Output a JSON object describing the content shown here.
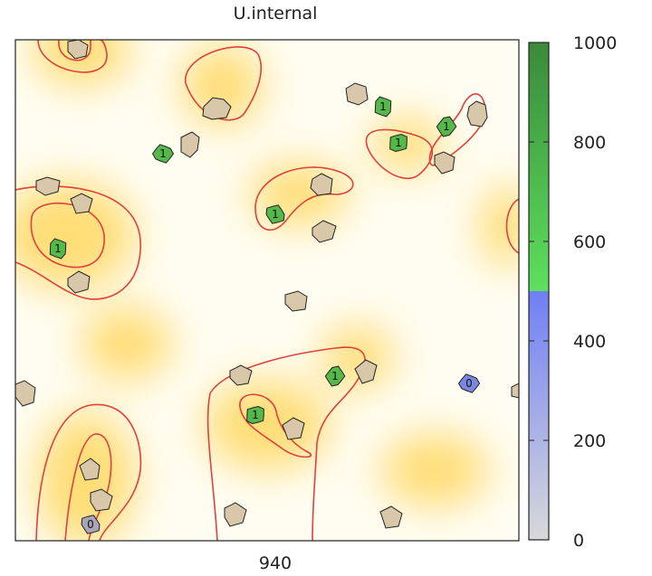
{
  "chart_data": {
    "type": "heatmap",
    "title": "U.internal",
    "xlabel": "940",
    "colorbar": {
      "min": 0,
      "max": 1000,
      "ticks": [
        0,
        200,
        400,
        600,
        800,
        1000
      ],
      "bands": [
        {
          "from": 0,
          "to": 500,
          "colors": [
            "#d9d9d9",
            "#6f7ff5"
          ]
        },
        {
          "from": 500,
          "to": 1000,
          "colors": [
            "#5ee05e",
            "#3a8a3a"
          ]
        }
      ]
    },
    "background_colors": {
      "low": "#fffdf2",
      "high": "#ffd24d",
      "contour": "#e0413c"
    },
    "regions": [
      {
        "label": "1",
        "value": 780,
        "color": "#55b84a"
      },
      {
        "label": "1",
        "value": 780,
        "color": "#55b84a"
      },
      {
        "label": "1",
        "value": 780,
        "color": "#55b84a"
      },
      {
        "label": "1",
        "value": 780,
        "color": "#55b84a"
      },
      {
        "label": "1",
        "value": 780,
        "color": "#55b84a"
      },
      {
        "label": "1",
        "value": 780,
        "color": "#55b84a"
      },
      {
        "label": "1",
        "value": 780,
        "color": "#55b84a"
      },
      {
        "label": "1",
        "value": 780,
        "color": "#55b84a"
      },
      {
        "label": "0",
        "value": 380,
        "color": "#7b86e0"
      },
      {
        "label": "0",
        "value": 100,
        "color": "#a9a4b8"
      }
    ]
  }
}
